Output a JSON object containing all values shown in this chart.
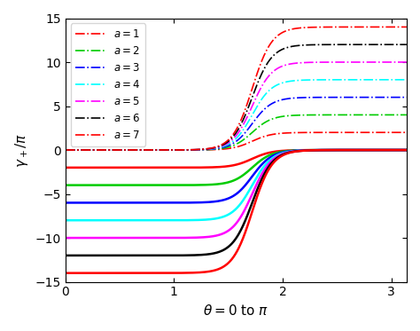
{
  "a_values": [
    1,
    2,
    3,
    4,
    5,
    6,
    7
  ],
  "colors": [
    "red",
    "#00cc00",
    "blue",
    "cyan",
    "magenta",
    "black",
    "red"
  ],
  "xlim_end": 3.14159265,
  "ylim": [
    -15,
    15
  ],
  "xlabel": "$\\theta = 0$ to $\\pi$",
  "ylabel": "$\\gamma_+/\\pi$",
  "xticks": [
    0,
    1,
    2,
    3
  ],
  "yticks": [
    -15,
    -10,
    -5,
    0,
    5,
    10,
    15
  ],
  "legend_labels": [
    "$a = 1$",
    "$a = 2$",
    "$a = 3$",
    "$a = 4$",
    "$a = 5$",
    "$a = 6$",
    "$a = 7$"
  ],
  "n_points": 800,
  "theta_transition": 1.72,
  "steepness": 5.5,
  "solid_lw": 1.8,
  "dash_lw": 1.2
}
